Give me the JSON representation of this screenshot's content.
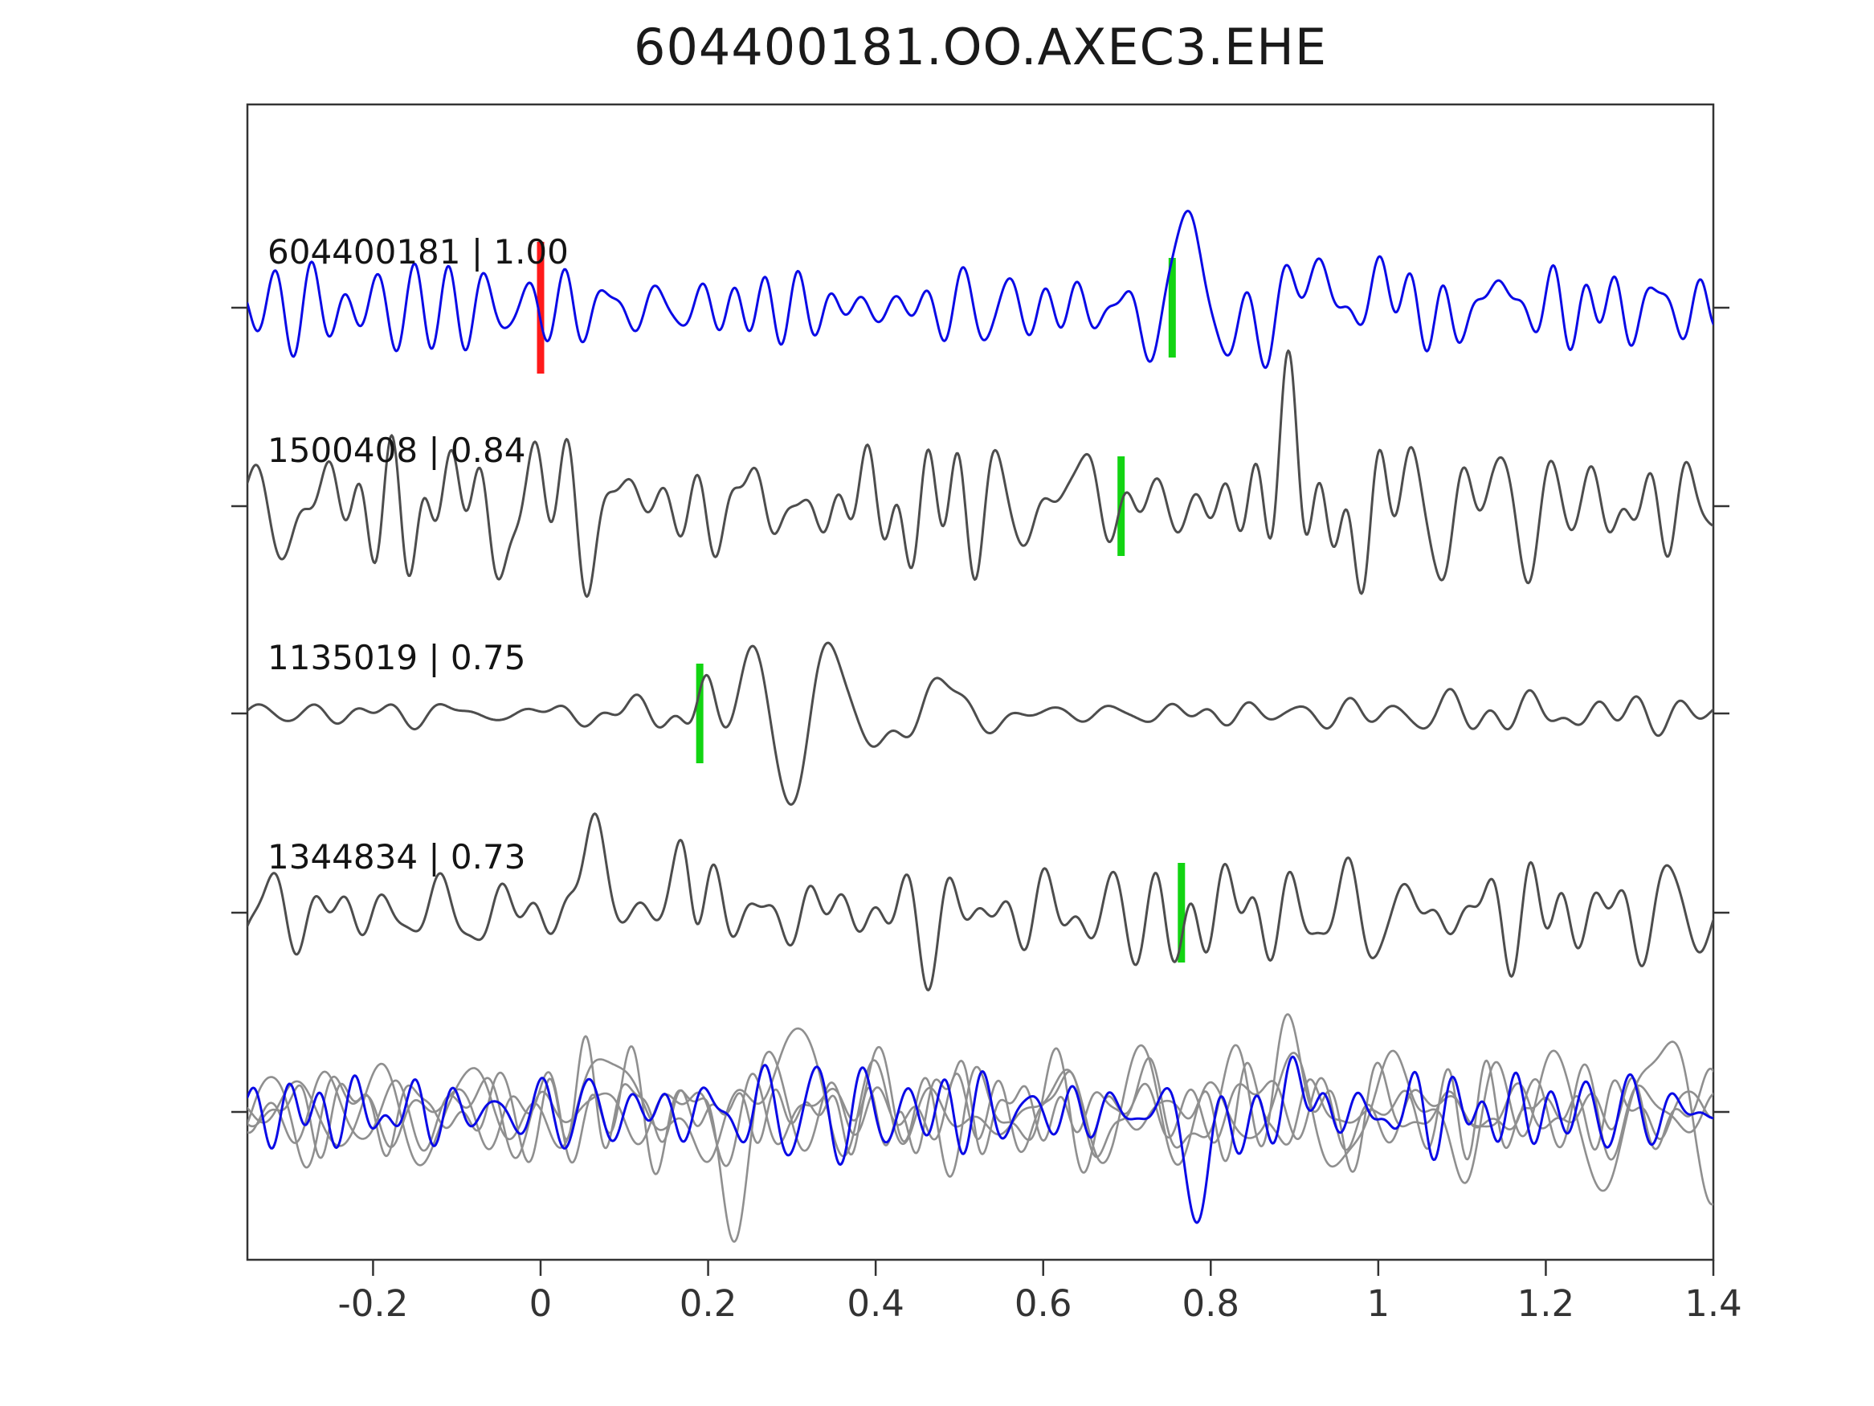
{
  "chart_data": {
    "type": "line",
    "title": "604400181.OO.AXEC3.EHE",
    "xlabel": "",
    "ylabel": "",
    "grid": false,
    "legend": "none",
    "xlim": [
      -0.35,
      1.4
    ],
    "x_ticks": [
      -0.2,
      0,
      0.2,
      0.4,
      0.6,
      0.8,
      1,
      1.2,
      1.4
    ],
    "x_tick_labels": [
      "-0.2",
      "0",
      "0.2",
      "0.4",
      "0.6",
      "0.8",
      "1",
      "1.2",
      "1.4"
    ],
    "colors": {
      "template_trace": "#0a0ae6",
      "match_trace": "#4d4d4d",
      "overlay_trace": "#8f8f8f",
      "pick_marker": "#12d412",
      "origin_marker": "#ff1a1a",
      "axis": "#333333",
      "tick_text": "#333333",
      "label_text": "#141414"
    },
    "rows": [
      {
        "event_id": "604400181",
        "label": "604400181 | 1.00",
        "correlation": 1.0,
        "color": "#0a0ae6",
        "pick_time": 0.754,
        "origin_time": 0.0,
        "synth": {
          "seed": 11,
          "n_comp": 64,
          "fmin": 14,
          "fmax": 30,
          "noise_amp": 23,
          "bursts": [
            {
              "t": 0.772,
              "w": 0.04,
              "a": 132,
              "f": 10,
              "ph": 1.57
            },
            {
              "t": 0.9,
              "w": 0.055,
              "a": 58,
              "f": 6.5,
              "ph": 0.6
            },
            {
              "t": 1.02,
              "w": 0.045,
              "a": 40,
              "f": 7.5
            },
            {
              "t": 1.13,
              "w": 0.04,
              "a": 30,
              "f": 8
            }
          ]
        }
      },
      {
        "event_id": "1500408",
        "label": "1500408 | 0.84",
        "correlation": 0.84,
        "color": "#4d4d4d",
        "pick_time": 0.693,
        "origin_time": null,
        "synth": {
          "seed": 22,
          "n_comp": 72,
          "fmin": 8,
          "fmax": 30,
          "noise_amp": 45,
          "bursts": [
            {
              "t": 0.655,
              "w": 0.03,
              "a": 50,
              "f": 9,
              "ph": 1.57
            },
            {
              "t": 0.885,
              "w": 0.03,
              "a": 88,
              "f": 7,
              "ph": 1.57
            },
            {
              "t": 0.94,
              "w": 0.04,
              "a": 45,
              "f": 8
            }
          ]
        }
      },
      {
        "event_id": "1135019",
        "label": "1135019 | 0.75",
        "correlation": 0.75,
        "color": "#4d4d4d",
        "pick_time": 0.19,
        "origin_time": null,
        "synth": {
          "seed": 33,
          "n_comp": 60,
          "fmin": 9,
          "fmax": 24,
          "noise_amp": 13,
          "env": [
            [
              -0.35,
              1.0
            ],
            [
              0.15,
              1.0
            ],
            [
              0.25,
              0.55
            ],
            [
              0.62,
              0.55
            ],
            [
              0.8,
              1.0
            ],
            [
              1.4,
              0.9
            ]
          ],
          "bursts": [
            {
              "t": 0.197,
              "w": 0.018,
              "a": 48,
              "f": 12,
              "ph": 1.57
            },
            {
              "t": 0.3,
              "w": 0.085,
              "a": 120,
              "f": 10.2,
              "ph": 4.9
            },
            {
              "t": 0.47,
              "w": 0.065,
              "a": 55,
              "f": 9,
              "ph": 0.8
            }
          ]
        }
      },
      {
        "event_id": "1344834",
        "label": "1344834 | 0.73",
        "correlation": 0.73,
        "color": "#4d4d4d",
        "pick_time": 0.765,
        "origin_time": null,
        "synth": {
          "seed": 44,
          "n_comp": 70,
          "fmin": 8,
          "fmax": 28,
          "noise_amp": 27,
          "bursts": [
            {
              "t": 0.062,
              "w": 0.022,
              "a": 135,
              "f": 9,
              "ph": 1.57
            },
            {
              "t": 0.172,
              "w": 0.018,
              "a": 105,
              "f": 10,
              "ph": 1.57
            },
            {
              "t": 0.44,
              "w": 0.05,
              "a": 28,
              "f": 7
            },
            {
              "t": 0.75,
              "w": 0.04,
              "a": 34,
              "f": 8
            }
          ]
        }
      }
    ],
    "overlay_traces": [
      {
        "color": "#8f8f8f",
        "synth": {
          "seed": 51,
          "n_comp": 50,
          "fmin": 5,
          "fmax": 18,
          "noise_amp": 34,
          "bursts": [
            {
              "t": 0.09,
              "w": 0.04,
              "a": 70,
              "f": 7
            },
            {
              "t": 0.3,
              "w": 0.07,
              "a": 90,
              "f": 4.5,
              "ph": 1.2
            },
            {
              "t": 0.62,
              "w": 0.05,
              "a": 40,
              "f": 6
            }
          ]
        }
      },
      {
        "color": "#8f8f8f",
        "synth": {
          "seed": 52,
          "n_comp": 55,
          "fmin": 8,
          "fmax": 24,
          "noise_amp": 32,
          "bursts": [
            {
              "t": 0.22,
              "w": 0.05,
              "a": 85,
              "f": 6,
              "ph": 4.7
            },
            {
              "t": 0.88,
              "w": 0.025,
              "a": 130,
              "f": 8,
              "ph": 1.57
            }
          ]
        }
      },
      {
        "color": "#8f8f8f",
        "synth": {
          "seed": 53,
          "n_comp": 55,
          "fmin": 10,
          "fmax": 28,
          "noise_amp": 28,
          "bursts": [
            {
              "t": 0.05,
              "w": 0.03,
              "a": 60,
              "f": 9
            },
            {
              "t": 0.45,
              "w": 0.06,
              "a": 42,
              "f": 5
            }
          ]
        }
      },
      {
        "color": "#8f8f8f",
        "synth": {
          "seed": 54,
          "n_comp": 45,
          "fmin": 6,
          "fmax": 20,
          "noise_amp": 24,
          "bursts": [
            {
              "t": 0.35,
              "w": 0.1,
              "a": 34,
              "f": 4
            },
            {
              "t": 0.9,
              "w": 0.05,
              "a": 55,
              "f": 6
            }
          ]
        }
      },
      {
        "color": "#0a0ae6",
        "synth": {
          "seed": 55,
          "n_comp": 60,
          "fmin": 14,
          "fmax": 28,
          "noise_amp": 23,
          "bursts": [
            {
              "t": 0.785,
              "w": 0.028,
              "a": 125,
              "f": 9,
              "ph": -1.57
            },
            {
              "t": 0.88,
              "w": 0.05,
              "a": 45,
              "f": 7,
              "ph": 0.3
            }
          ]
        }
      }
    ]
  }
}
